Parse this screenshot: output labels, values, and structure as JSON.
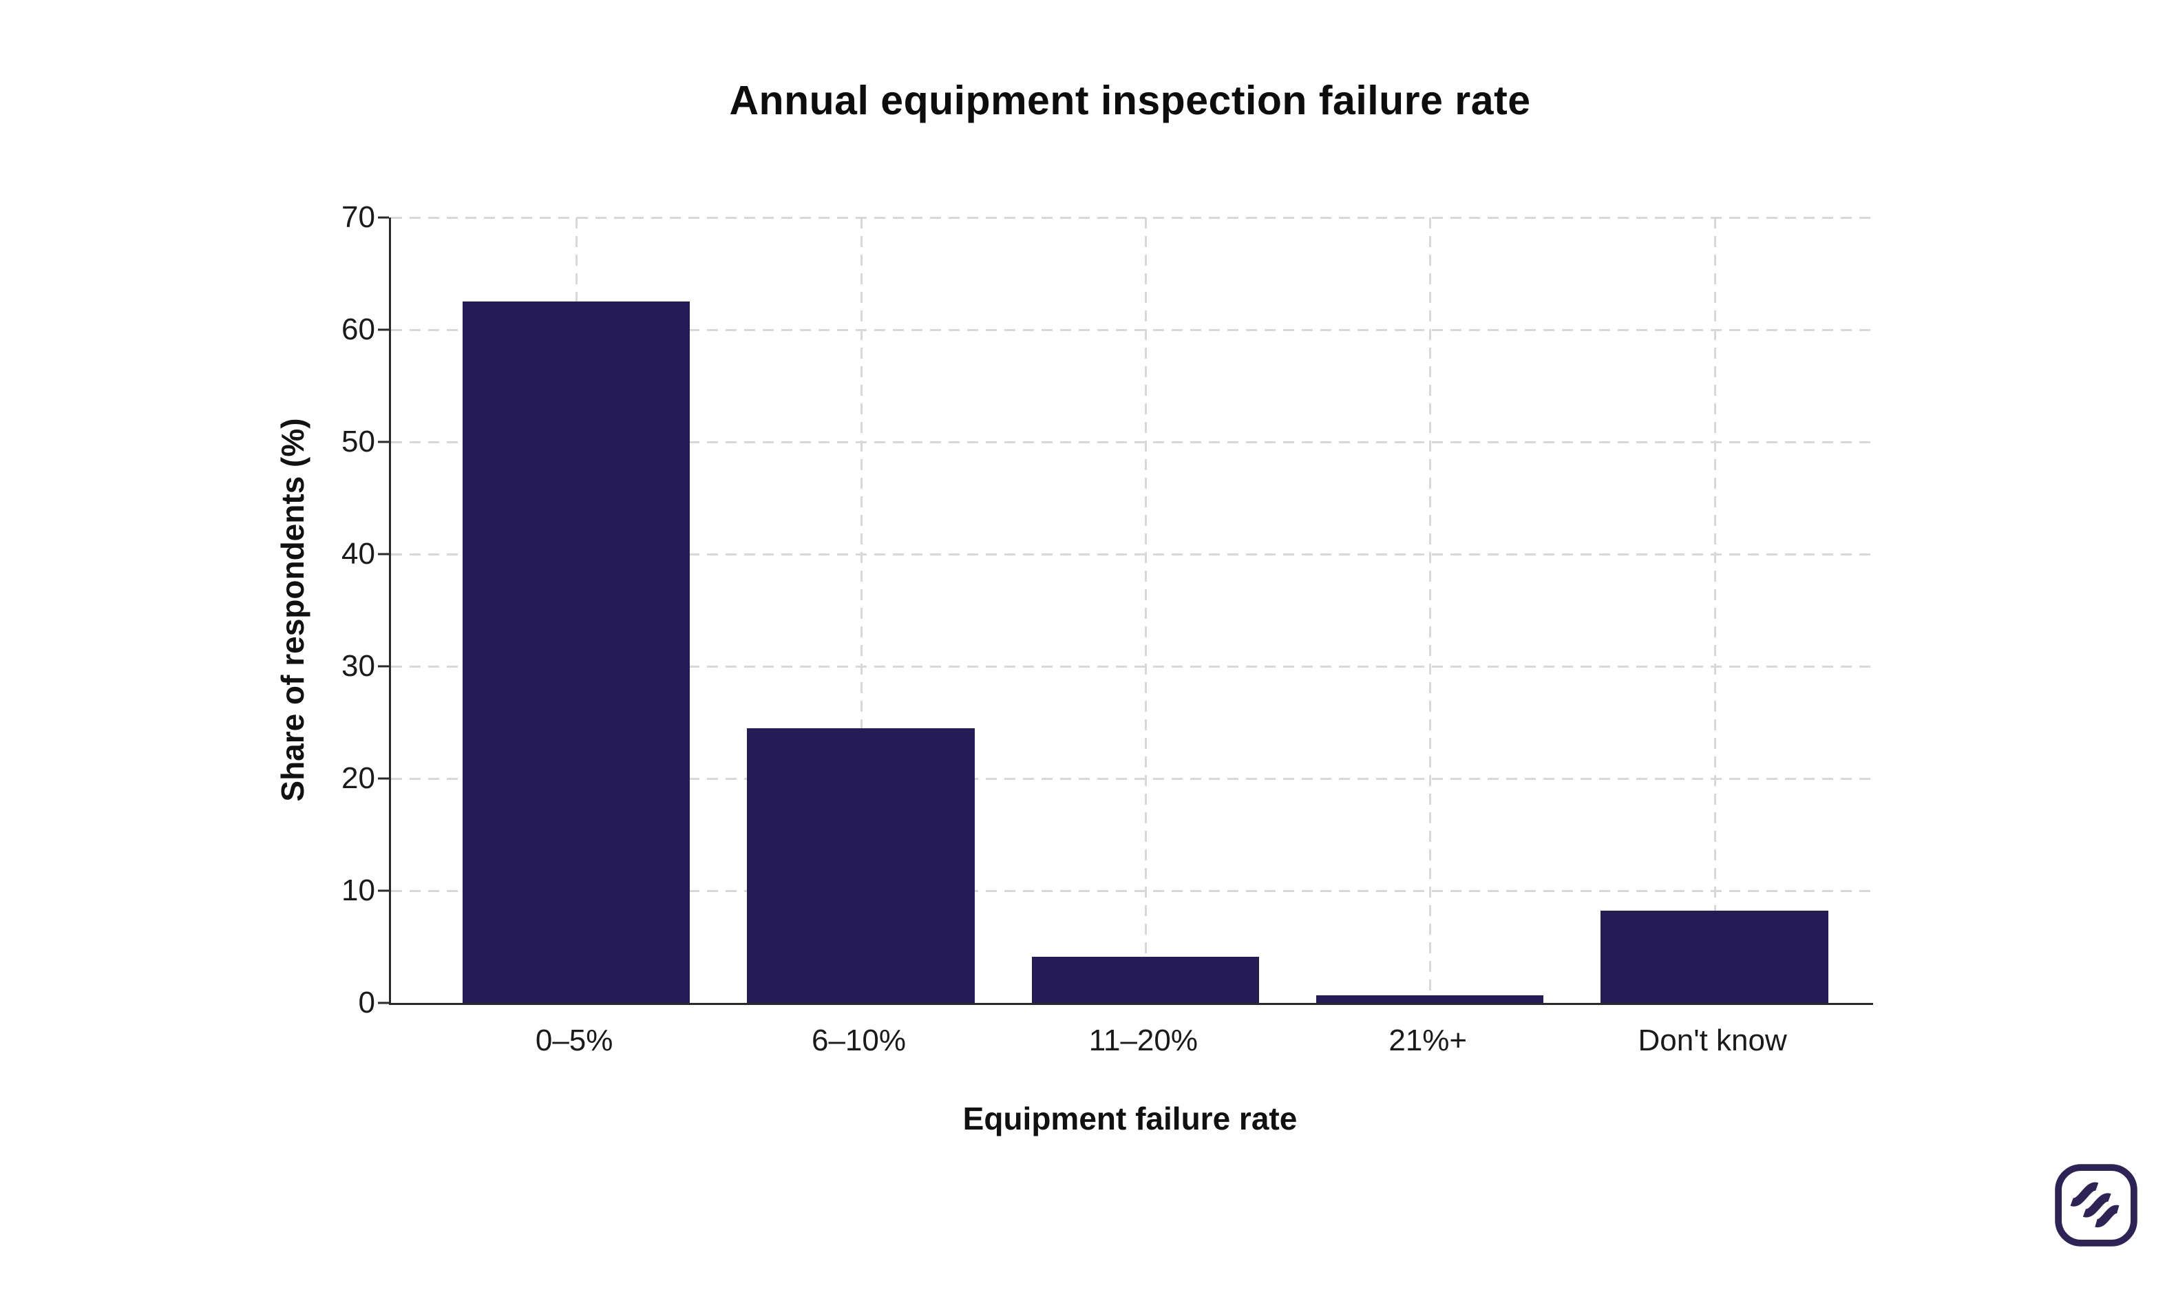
{
  "chart_data": {
    "type": "bar",
    "title": "Annual equipment inspection failure rate",
    "xlabel": "Equipment failure rate",
    "ylabel": "Share of respondents (%)",
    "categories": [
      "0–5%",
      "6–10%",
      "11–20%",
      "21%+",
      "Don't know"
    ],
    "values": [
      62.5,
      24.5,
      4.1,
      0.7,
      8.2
    ],
    "ylim": [
      0,
      70
    ],
    "yticks": [
      0,
      10,
      20,
      30,
      40,
      50,
      60,
      70
    ],
    "grid": "dashed horizontal lines at each y tick and dashed vertical lines at each category center",
    "legend_position": "none",
    "bar_color": "#261c55"
  },
  "colors": {
    "background": "#ffffff",
    "bar": "#261c55",
    "spine": "#2a2a2a",
    "gridline": "#d8d8d8",
    "text": "#111111",
    "logo": "#2d2355"
  },
  "logo": {
    "icon": "wave-squircle-logo"
  }
}
